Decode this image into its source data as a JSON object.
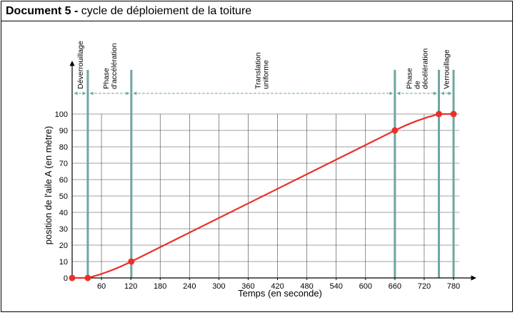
{
  "header": {
    "doc_label": "Document 5 -",
    "title": "cycle de déploiement de la toiture"
  },
  "colors": {
    "curve": "#e8312b",
    "phase_line": "#6fa6a0",
    "grid": "#444444",
    "axis": "#000000"
  },
  "chart_data": {
    "type": "line",
    "xlabel": "Temps (en seconde)",
    "ylabel": "position de l'aile  A (en mètre)",
    "x_ticks": [
      60,
      120,
      180,
      240,
      300,
      360,
      420,
      480,
      540,
      600,
      660,
      720,
      780
    ],
    "y_ticks": [
      0,
      10,
      20,
      30,
      40,
      50,
      60,
      70,
      80,
      90,
      100
    ],
    "y_range": [
      0,
      100
    ],
    "grid": true,
    "phase_boundaries": [
      0,
      32,
      121,
      660,
      750,
      780
    ],
    "phases": [
      {
        "name": "Déverrouillage",
        "start": 0,
        "end": 32
      },
      {
        "name": "Phase d'accélération",
        "start": 32,
        "end": 121
      },
      {
        "name": "Translation uniforme",
        "start": 121,
        "end": 660
      },
      {
        "name": "Phase de décélération",
        "start": 660,
        "end": 750
      },
      {
        "name": "Verrouillage",
        "start": 750,
        "end": 780
      }
    ],
    "points": [
      {
        "x": 0,
        "y": 0
      },
      {
        "x": 32,
        "y": 0
      },
      {
        "x": 121,
        "y": 10
      },
      {
        "x": 660,
        "y": 90
      },
      {
        "x": 750,
        "y": 100
      },
      {
        "x": 780,
        "y": 100
      }
    ]
  }
}
